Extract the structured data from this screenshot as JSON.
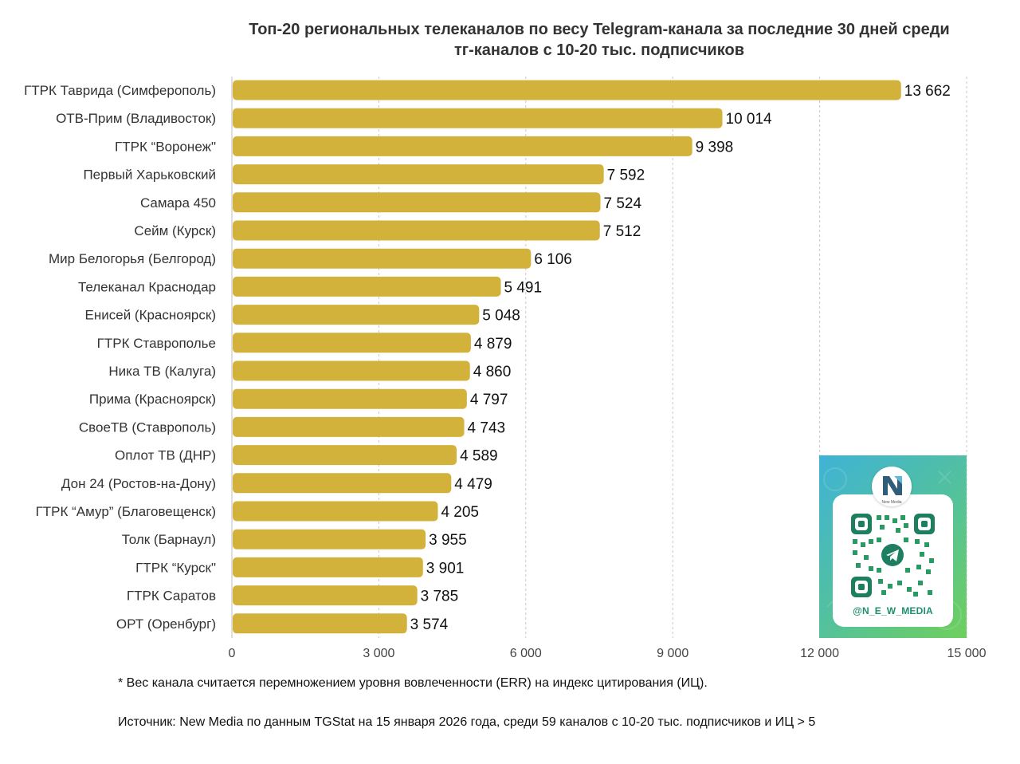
{
  "title": {
    "line1": "Топ-20 региональных телеканалов по весу Telegram-канала за последние 30 дней среди",
    "line2": "тг-каналов с 10-20 тыс. подписчиков"
  },
  "chart_data": {
    "type": "bar",
    "orientation": "horizontal",
    "title": "Топ-20 региональных телеканалов по весу Telegram-канала за последние 30 дней среди тг-каналов с 10-20 тыс. подписчиков",
    "categories": [
      "ГТРК Таврида (Симферополь)",
      "ОТВ-Прим (Владивосток)",
      "ГТРК “Воронеж\"",
      "Первый Харьковский",
      "Самара 450",
      "Сейм (Курск)",
      "Мир Белогорья (Белгород)",
      "Телеканал Краснодар",
      "Енисей (Красноярск)",
      "ГТРК Ставрополье",
      "Ника ТВ (Калуга)",
      "Прима (Красноярск)",
      "СвоеТВ (Ставрополь)",
      "Оплот ТВ (ДНР)",
      "Дон 24 (Ростов-на-Дону)",
      "ГТРК “Амур” (Благовещенск)",
      "Толк (Барнаул)",
      "ГТРК “Курск\"",
      "ГТРК Саратов",
      "ОРТ (Оренбург)"
    ],
    "values": [
      13662,
      10014,
      9398,
      7592,
      7524,
      7512,
      6106,
      5491,
      5048,
      4879,
      4860,
      4797,
      4743,
      4589,
      4479,
      4205,
      3955,
      3901,
      3785,
      3574
    ],
    "value_labels": [
      "13 662",
      "10 014",
      "9 398",
      "7 592",
      "7 524",
      "7 512",
      "6 106",
      "5 491",
      "5 048",
      "4 879",
      "4 860",
      "4 797",
      "4 743",
      "4 589",
      "4 479",
      "4 205",
      "3 955",
      "3 901",
      "3 785",
      "3 574"
    ],
    "xlim": [
      0,
      15000
    ],
    "xticks": [
      0,
      3000,
      6000,
      9000,
      12000,
      15000
    ],
    "xtick_labels": [
      "0",
      "3 000",
      "6 000",
      "9 000",
      "12 000",
      "15 000"
    ],
    "xlabel": "",
    "ylabel": "",
    "grid": "vertical dashed",
    "bar_color": "#d2b23a"
  },
  "notes": {
    "footnote": "* Вес канала считается перемножением уровня вовлеченности (ERR) на индекс цитирования (ИЦ).",
    "source": "Источник: New Media по данным TGStat на 15 января 2026 года, среди 59 каналов с 10-20 тыс. подписчиков и ИЦ > 5"
  },
  "promo": {
    "logo_caption": "New Media",
    "handle": "@N_E_W_MEDIA",
    "qr_icon": "telegram-icon"
  }
}
